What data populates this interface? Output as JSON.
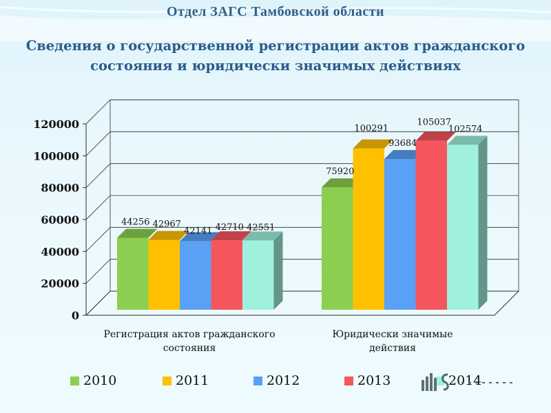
{
  "header": {
    "title": "Отдел ЗАГС Тамбовской области"
  },
  "main_title": {
    "line1": "Сведения о государственной регистрации актов гражданского",
    "line2": "состояния и юридически значимых действиях"
  },
  "colors": {
    "2010": "#8ccf50",
    "2011": "#ffc000",
    "2012": "#5aa0f5",
    "2013": "#f5565e",
    "2014": "#9ff0dc"
  },
  "chart_data": {
    "type": "bar",
    "categories": [
      [
        "Регистрация актов гражданского",
        "состояния"
      ],
      [
        "Юридически значимые",
        "действия"
      ]
    ],
    "series": [
      {
        "name": "2010",
        "values": [
          44256,
          75920
        ]
      },
      {
        "name": "2011",
        "values": [
          42967,
          100291
        ]
      },
      {
        "name": "2012",
        "values": [
          42141,
          93684
        ]
      },
      {
        "name": "2013",
        "values": [
          42710,
          105037
        ]
      },
      {
        "name": "2014",
        "values": [
          42551,
          102574
        ]
      }
    ],
    "ylim": [
      0,
      120000
    ],
    "yticks": [
      "0",
      "20000",
      "40000",
      "60000",
      "80000",
      "100000",
      "120000"
    ],
    "grid": true,
    "legend": "bottom",
    "three_d": true
  }
}
